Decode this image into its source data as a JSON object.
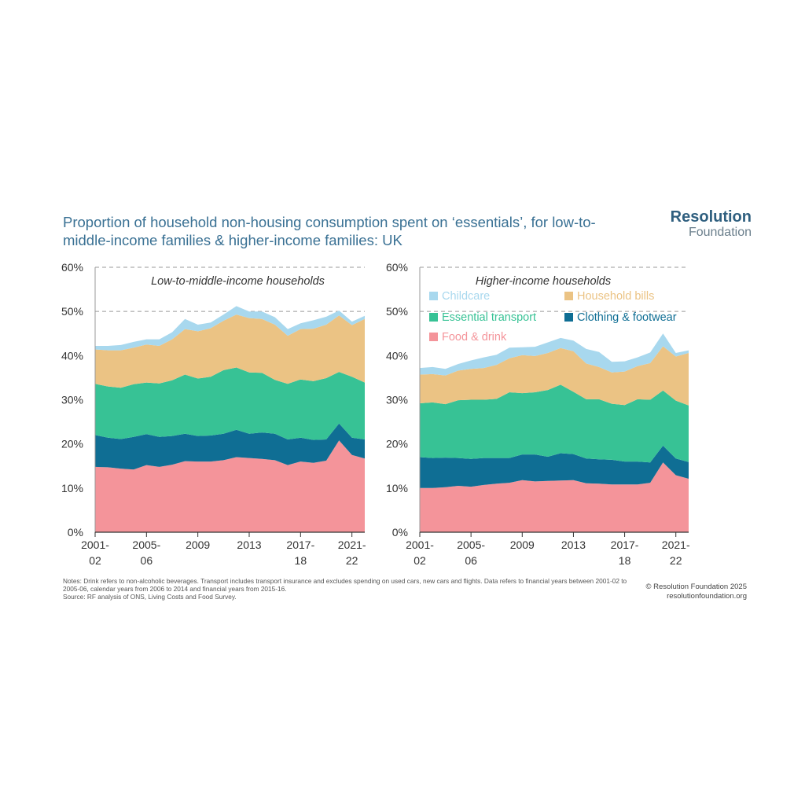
{
  "title": "Proportion of household non-housing consumption spent on ‘essentials’, for low-to-middle-income families & higher-income families: UK",
  "logo": {
    "line1": "Resolution",
    "line2": "Foundation"
  },
  "notes": {
    "line1": "Notes: Drink refers to non-alcoholic beverages. Transport includes transport insurance and excludes spending on used cars, new cars and flights. Data refers to financial years between 2001-02 to 2005-06, calendar years from 2006 to 2014 and financial years from 2015-16.",
    "line2": "Source: RF analysis of ONS, Living Costs and Food Survey."
  },
  "credit": {
    "line1": "© Resolution Foundation 2025",
    "line2": "resolutionfoundation.org"
  },
  "colors": {
    "food": "#f4949a",
    "clothing": "#0f6e94",
    "transport": "#37c295",
    "bills": "#ebc384",
    "childcare": "#a8d8ee"
  },
  "chart_data": [
    {
      "type": "area",
      "stacked": true,
      "title": "Low-to-middle-income households",
      "x": [
        "2001-02",
        "2002-03",
        "2003-04",
        "2004-05",
        "2005-06",
        "2006",
        "2007",
        "2008",
        "2009",
        "2010",
        "2011",
        "2012",
        "2013",
        "2014",
        "2015-16",
        "2016-17",
        "2017-18",
        "2018-19",
        "2019-20",
        "2020-21",
        "2021-22",
        "2022-23"
      ],
      "x_tick_labels": [
        [
          "2001-",
          "02"
        ],
        [
          "2005-",
          "06"
        ],
        [
          "2009",
          ""
        ],
        [
          "2013",
          ""
        ],
        [
          "2017-",
          "18"
        ],
        [
          "2021-",
          "22"
        ]
      ],
      "x_tick_index": [
        0,
        4,
        8,
        12,
        16,
        20
      ],
      "ylim": [
        0,
        60
      ],
      "yticks": [
        "0%",
        "10%",
        "20%",
        "30%",
        "40%",
        "50%",
        "60%"
      ],
      "grid": "dashed at 50% and 60%",
      "series": [
        {
          "name": "Food & drink",
          "key": "food",
          "values": [
            14.8,
            14.7,
            14.4,
            14.2,
            15.2,
            14.8,
            15.3,
            16.1,
            16.0,
            16.0,
            16.3,
            17.0,
            16.8,
            16.6,
            16.3,
            15.2,
            16.0,
            15.7,
            16.2,
            20.8,
            17.5,
            16.7
          ]
        },
        {
          "name": "Clothing & footwear",
          "key": "clothing",
          "values": [
            7.2,
            6.7,
            6.7,
            7.4,
            7.0,
            6.8,
            6.5,
            6.2,
            5.8,
            5.9,
            6.0,
            6.2,
            5.5,
            6.0,
            6.0,
            5.8,
            5.4,
            5.2,
            4.8,
            3.8,
            3.9,
            4.3
          ]
        },
        {
          "name": "Essential transport",
          "key": "transport",
          "values": [
            11.6,
            11.6,
            11.6,
            11.9,
            11.7,
            12.1,
            12.6,
            13.4,
            13.0,
            13.3,
            14.4,
            14.1,
            13.9,
            13.5,
            12.2,
            12.6,
            13.2,
            13.3,
            13.9,
            11.7,
            13.8,
            12.9
          ]
        },
        {
          "name": "Household bills",
          "key": "bills",
          "values": [
            7.8,
            8.2,
            8.5,
            8.3,
            8.6,
            8.5,
            9.3,
            10.3,
            10.7,
            11.0,
            11.2,
            12.0,
            12.3,
            12.2,
            12.5,
            10.9,
            11.4,
            11.9,
            12.1,
            12.8,
            11.7,
            14.4
          ]
        },
        {
          "name": "Childcare",
          "key": "childcare",
          "values": [
            0.8,
            1.0,
            1.2,
            1.3,
            1.2,
            1.5,
            1.6,
            2.3,
            1.5,
            1.3,
            1.4,
            1.9,
            1.5,
            1.7,
            1.7,
            1.5,
            1.3,
            1.9,
            1.8,
            1.1,
            0.8,
            0.7
          ]
        }
      ]
    },
    {
      "type": "area",
      "stacked": true,
      "title": "Higher-income households",
      "x": [
        "2001-02",
        "2002-03",
        "2003-04",
        "2004-05",
        "2005-06",
        "2006",
        "2007",
        "2008",
        "2009",
        "2010",
        "2011",
        "2012",
        "2013",
        "2014",
        "2015-16",
        "2016-17",
        "2017-18",
        "2018-19",
        "2019-20",
        "2020-21",
        "2021-22",
        "2022-23"
      ],
      "x_tick_labels": [
        [
          "2001-",
          "02"
        ],
        [
          "2005-",
          "06"
        ],
        [
          "2009",
          ""
        ],
        [
          "2013",
          ""
        ],
        [
          "2017-",
          "18"
        ],
        [
          "2021-",
          "22"
        ]
      ],
      "x_tick_index": [
        0,
        4,
        8,
        12,
        16,
        20
      ],
      "ylim": [
        0,
        60
      ],
      "yticks": [
        "0%",
        "10%",
        "20%",
        "30%",
        "40%",
        "50%",
        "60%"
      ],
      "grid": "dashed at 50% and 60%",
      "legend": {
        "position": "top",
        "columns": 2
      },
      "series": [
        {
          "name": "Food & drink",
          "key": "food",
          "values": [
            10.0,
            10.0,
            10.2,
            10.5,
            10.3,
            10.7,
            11.0,
            11.2,
            11.8,
            11.5,
            11.6,
            11.7,
            11.8,
            11.1,
            11.0,
            10.8,
            10.8,
            10.8,
            11.2,
            15.8,
            12.9,
            12.1
          ]
        },
        {
          "name": "Clothing & footwear",
          "key": "clothing",
          "values": [
            7.0,
            6.8,
            6.7,
            6.3,
            6.3,
            6.1,
            5.8,
            5.6,
            5.8,
            6.1,
            5.5,
            6.2,
            5.9,
            5.6,
            5.5,
            5.6,
            5.2,
            5.2,
            4.6,
            3.8,
            3.8,
            3.8
          ]
        },
        {
          "name": "Essential transport",
          "key": "transport",
          "values": [
            12.2,
            12.6,
            12.1,
            13.1,
            13.4,
            13.2,
            13.4,
            14.9,
            13.9,
            14.1,
            15.1,
            15.5,
            14.1,
            13.4,
            13.6,
            12.7,
            12.8,
            14.1,
            14.2,
            12.5,
            13.1,
            12.8
          ]
        },
        {
          "name": "Household bills",
          "key": "bills",
          "values": [
            6.5,
            6.4,
            6.5,
            6.7,
            7.0,
            7.2,
            7.7,
            7.7,
            8.6,
            8.2,
            8.4,
            8.3,
            9.2,
            8.1,
            7.3,
            7.1,
            7.6,
            7.5,
            8.3,
            10.0,
            10.0,
            11.9
          ]
        },
        {
          "name": "Childcare",
          "key": "childcare",
          "values": [
            1.5,
            1.6,
            1.5,
            1.5,
            1.9,
            2.4,
            2.3,
            2.4,
            1.8,
            2.1,
            2.4,
            2.3,
            2.4,
            3.3,
            3.4,
            2.4,
            2.3,
            2.0,
            2.4,
            2.9,
            0.8,
            0.6
          ]
        }
      ]
    }
  ]
}
